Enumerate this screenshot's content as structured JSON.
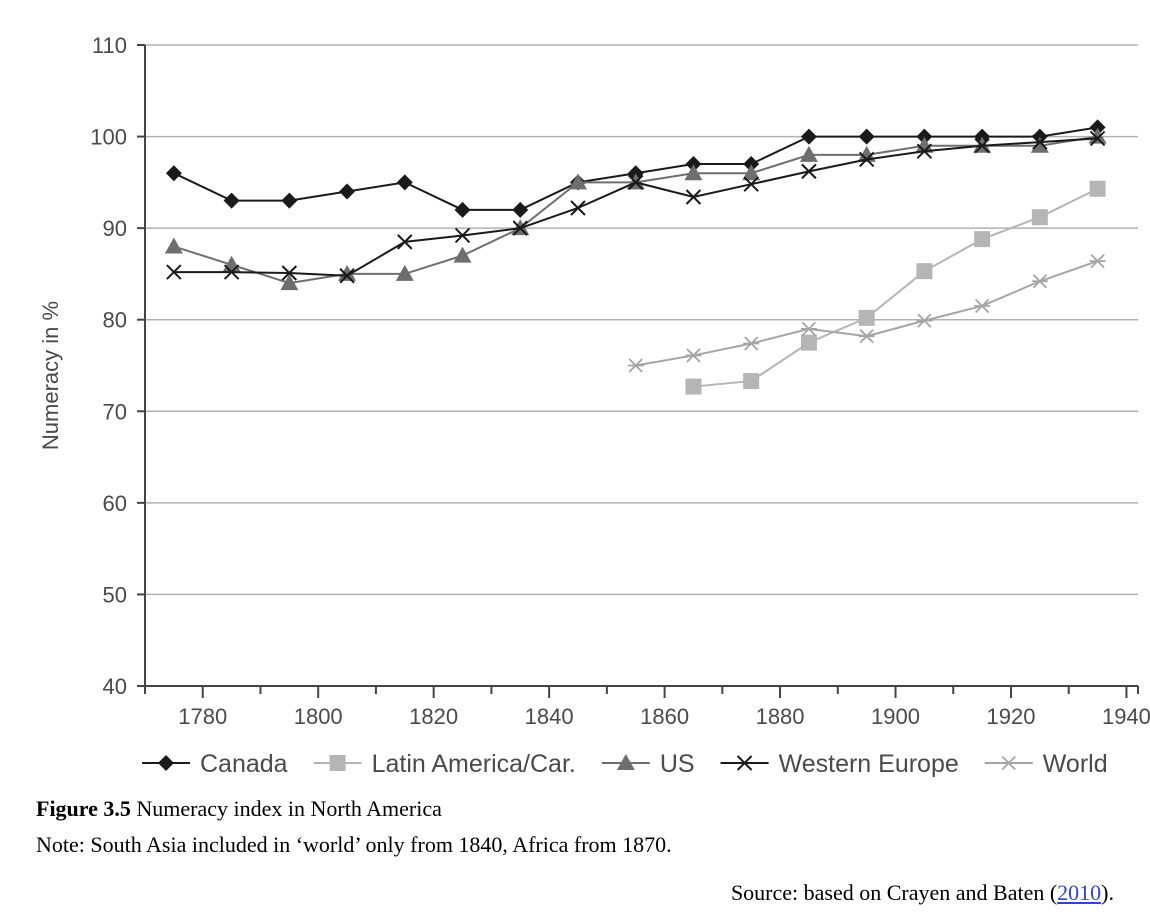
{
  "chart_data": {
    "type": "line",
    "title": "",
    "xlabel": "",
    "ylabel": "Numeracy in %",
    "xlim": [
      1770,
      1942
    ],
    "ylim": [
      40,
      110
    ],
    "xticks": [
      1780,
      1800,
      1820,
      1840,
      1860,
      1880,
      1900,
      1920,
      1940
    ],
    "yticks": [
      40,
      50,
      60,
      70,
      80,
      90,
      100,
      110
    ],
    "grid": "horizontal",
    "legend_position": "bottom",
    "series": [
      {
        "name": "Canada",
        "marker": "diamond",
        "color": "#1a1a1a",
        "x": [
          1775,
          1785,
          1795,
          1805,
          1815,
          1825,
          1835,
          1845,
          1855,
          1865,
          1875,
          1885,
          1895,
          1905,
          1915,
          1925,
          1935
        ],
        "y": [
          96,
          93,
          93,
          94,
          95,
          92,
          92,
          95,
          96,
          97,
          97,
          100,
          100,
          100,
          100,
          100,
          101
        ]
      },
      {
        "name": "Latin America/Car.",
        "marker": "square",
        "color": "#b5b5b5",
        "x": [
          1865,
          1875,
          1885,
          1895,
          1905,
          1915,
          1925,
          1935
        ],
        "y": [
          72.7,
          73.3,
          77.5,
          80.2,
          85.3,
          88.8,
          91.2,
          94.3
        ]
      },
      {
        "name": "US",
        "marker": "triangle",
        "color": "#6e6e6e",
        "x": [
          1775,
          1785,
          1795,
          1805,
          1815,
          1825,
          1835,
          1845,
          1855,
          1865,
          1875,
          1885,
          1895,
          1905,
          1915,
          1925,
          1935
        ],
        "y": [
          88,
          86,
          84,
          85,
          85,
          87,
          90,
          95,
          95,
          96,
          96,
          98,
          98,
          99,
          99,
          99,
          100
        ]
      },
      {
        "name": "Western Europe",
        "marker": "x",
        "color": "#1a1a1a",
        "x": [
          1775,
          1785,
          1795,
          1805,
          1815,
          1825,
          1835,
          1845,
          1855,
          1865,
          1875,
          1885,
          1895,
          1905,
          1915,
          1925,
          1935
        ],
        "y": [
          85.2,
          85.2,
          85.1,
          84.8,
          88.5,
          89.2,
          90,
          92.2,
          95,
          93.4,
          94.8,
          96.2,
          97.5,
          98.4,
          99,
          99.4,
          99.8
        ]
      },
      {
        "name": "World",
        "marker": "star",
        "color": "#a5a5a5",
        "x": [
          1855,
          1865,
          1875,
          1885,
          1895,
          1905,
          1915,
          1925,
          1935
        ],
        "y": [
          75,
          76.1,
          77.4,
          79,
          78.2,
          79.9,
          81.5,
          84.2,
          86.4
        ]
      }
    ]
  },
  "caption": {
    "figure_label": "Figure 3.5",
    "figure_title": "Numeracy index in North America",
    "note": "Note: South Asia included in ‘world’ only from 1840, Africa from 1870.",
    "source_prefix": "Source: based on Crayen and Baten (",
    "source_link": "2010",
    "source_suffix": ")."
  }
}
